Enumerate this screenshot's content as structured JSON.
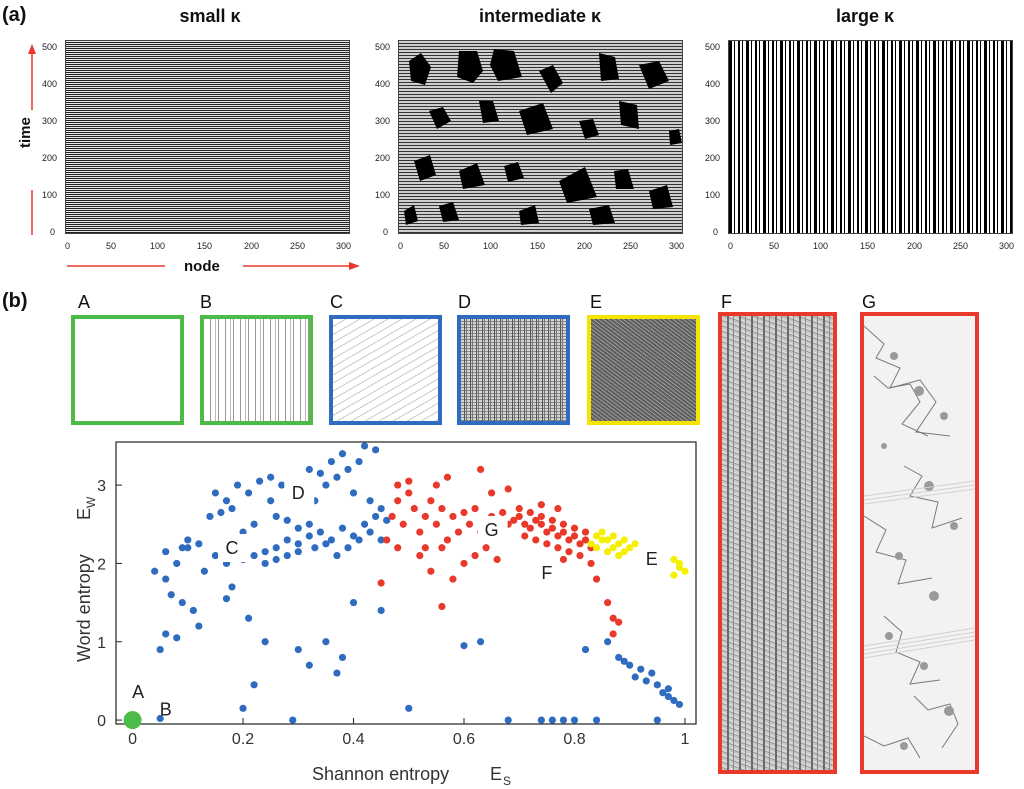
{
  "panel_a": {
    "label": "(a)",
    "titles": [
      "small κ",
      "intermediate κ",
      "large κ"
    ],
    "y_axis_label": "time",
    "x_axis_label": "node",
    "y_ticks": [
      "0",
      "100",
      "200",
      "300",
      "400",
      "500"
    ],
    "x_ticks": [
      "0",
      "50",
      "100",
      "150",
      "200",
      "250",
      "300"
    ]
  },
  "panel_b": {
    "label": "(b)",
    "thumbnails": [
      {
        "label": "A",
        "border": "#4cbb47"
      },
      {
        "label": "B",
        "border": "#4cbb47"
      },
      {
        "label": "C",
        "border": "#2f6cc0"
      },
      {
        "label": "D",
        "border": "#2f6cc0"
      },
      {
        "label": "E",
        "border": "#f5e400"
      },
      {
        "label": "F",
        "border": "#e8392a"
      },
      {
        "label": "G",
        "border": "#e8392a"
      }
    ]
  },
  "chart_data": {
    "type": "scatter",
    "xlabel": "Shannon entropy",
    "xlabel_symbol": "E",
    "xlabel_sub": "S",
    "ylabel": "Word entropy",
    "ylabel_symbol": "E",
    "ylabel_sub": "W",
    "xlim": [
      -0.03,
      1.02
    ],
    "ylim": [
      -0.05,
      3.55
    ],
    "x_ticks": [
      "0",
      "0.2",
      "0.4",
      "0.6",
      "0.8",
      "1"
    ],
    "y_ticks": [
      "0",
      "1",
      "2",
      "3"
    ],
    "colors": {
      "A": "#4cbb47",
      "blue": "#2f6cc0",
      "red": "#e8392a",
      "yellow": "#f5f000"
    },
    "series": [
      {
        "name": "blue",
        "points": [
          [
            0.05,
            0.9
          ],
          [
            0.06,
            1.1
          ],
          [
            0.08,
            1.05
          ],
          [
            0.12,
            1.2
          ],
          [
            0.07,
            1.6
          ],
          [
            0.09,
            1.5
          ],
          [
            0.11,
            1.4
          ],
          [
            0.04,
            1.9
          ],
          [
            0.06,
            1.8
          ],
          [
            0.08,
            2.0
          ],
          [
            0.1,
            2.3
          ],
          [
            0.09,
            2.2
          ],
          [
            0.13,
            1.9
          ],
          [
            0.15,
            2.1
          ],
          [
            0.17,
            2.0
          ],
          [
            0.18,
            1.7
          ],
          [
            0.2,
            2.05
          ],
          [
            0.22,
            2.1
          ],
          [
            0.24,
            2.15
          ],
          [
            0.26,
            2.2
          ],
          [
            0.28,
            2.3
          ],
          [
            0.3,
            2.25
          ],
          [
            0.32,
            2.35
          ],
          [
            0.34,
            2.4
          ],
          [
            0.36,
            2.3
          ],
          [
            0.38,
            2.45
          ],
          [
            0.4,
            2.35
          ],
          [
            0.42,
            2.5
          ],
          [
            0.24,
            2.0
          ],
          [
            0.26,
            2.05
          ],
          [
            0.28,
            2.1
          ],
          [
            0.3,
            2.15
          ],
          [
            0.33,
            2.2
          ],
          [
            0.35,
            2.25
          ],
          [
            0.37,
            2.1
          ],
          [
            0.39,
            2.2
          ],
          [
            0.41,
            2.3
          ],
          [
            0.43,
            2.4
          ],
          [
            0.45,
            2.3
          ],
          [
            0.2,
            2.4
          ],
          [
            0.22,
            2.5
          ],
          [
            0.14,
            2.6
          ],
          [
            0.16,
            2.65
          ],
          [
            0.18,
            2.7
          ],
          [
            0.15,
            2.9
          ],
          [
            0.17,
            2.8
          ],
          [
            0.19,
            3.0
          ],
          [
            0.21,
            2.9
          ],
          [
            0.23,
            3.05
          ],
          [
            0.25,
            3.1
          ],
          [
            0.27,
            3.0
          ],
          [
            0.25,
            2.8
          ],
          [
            0.29,
            2.85
          ],
          [
            0.31,
            2.9
          ],
          [
            0.33,
            2.8
          ],
          [
            0.35,
            3.0
          ],
          [
            0.37,
            3.1
          ],
          [
            0.39,
            3.2
          ],
          [
            0.41,
            3.3
          ],
          [
            0.42,
            3.5
          ],
          [
            0.44,
            3.45
          ],
          [
            0.38,
            3.4
          ],
          [
            0.36,
            3.3
          ],
          [
            0.34,
            3.15
          ],
          [
            0.32,
            3.2
          ],
          [
            0.4,
            2.9
          ],
          [
            0.43,
            2.8
          ],
          [
            0.45,
            2.7
          ],
          [
            0.46,
            2.55
          ],
          [
            0.44,
            2.6
          ],
          [
            0.26,
            2.6
          ],
          [
            0.28,
            2.55
          ],
          [
            0.3,
            2.45
          ],
          [
            0.32,
            2.5
          ],
          [
            0.12,
            2.25
          ],
          [
            0.1,
            2.2
          ],
          [
            0.06,
            2.15
          ],
          [
            0.17,
            1.55
          ],
          [
            0.21,
            1.3
          ],
          [
            0.24,
            1.0
          ],
          [
            0.3,
            0.9
          ],
          [
            0.32,
            0.7
          ],
          [
            0.35,
            1.0
          ],
          [
            0.38,
            0.8
          ],
          [
            0.22,
            0.45
          ],
          [
            0.2,
            0.15
          ],
          [
            0.29,
            0.0
          ],
          [
            0.5,
            0.15
          ],
          [
            0.37,
            0.6
          ],
          [
            0.4,
            1.5
          ],
          [
            0.45,
            1.4
          ],
          [
            0.68,
            0.0
          ],
          [
            0.74,
            0.0
          ],
          [
            0.76,
            0.0
          ],
          [
            0.78,
            0.0
          ],
          [
            0.8,
            0.0
          ],
          [
            0.84,
            0.0
          ],
          [
            0.95,
            0.0
          ],
          [
            0.82,
            0.9
          ],
          [
            0.86,
            1.0
          ],
          [
            0.88,
            0.8
          ],
          [
            0.9,
            0.7
          ],
          [
            0.92,
            0.65
          ],
          [
            0.94,
            0.6
          ],
          [
            0.95,
            0.45
          ],
          [
            0.96,
            0.35
          ],
          [
            0.97,
            0.3
          ],
          [
            0.98,
            0.25
          ],
          [
            0.99,
            0.2
          ],
          [
            0.97,
            0.4
          ],
          [
            0.93,
            0.5
          ],
          [
            0.91,
            0.55
          ],
          [
            0.89,
            0.75
          ],
          [
            0.6,
            0.95
          ],
          [
            0.63,
            1.0
          ],
          [
            0.05,
            0.02
          ]
        ]
      },
      {
        "name": "red",
        "points": [
          [
            0.47,
            2.6
          ],
          [
            0.48,
            2.8
          ],
          [
            0.49,
            2.5
          ],
          [
            0.5,
            2.9
          ],
          [
            0.51,
            2.7
          ],
          [
            0.52,
            2.4
          ],
          [
            0.53,
            2.6
          ],
          [
            0.54,
            2.8
          ],
          [
            0.55,
            2.5
          ],
          [
            0.56,
            2.7
          ],
          [
            0.57,
            2.3
          ],
          [
            0.58,
            2.6
          ],
          [
            0.59,
            2.4
          ],
          [
            0.6,
            2.65
          ],
          [
            0.61,
            2.5
          ],
          [
            0.62,
            2.7
          ],
          [
            0.63,
            2.4
          ],
          [
            0.64,
            2.55
          ],
          [
            0.65,
            2.6
          ],
          [
            0.66,
            2.45
          ],
          [
            0.67,
            2.65
          ],
          [
            0.68,
            2.5
          ],
          [
            0.69,
            2.55
          ],
          [
            0.7,
            2.6
          ],
          [
            0.71,
            2.5
          ],
          [
            0.72,
            2.45
          ],
          [
            0.73,
            2.55
          ],
          [
            0.74,
            2.5
          ],
          [
            0.75,
            2.4
          ],
          [
            0.76,
            2.45
          ],
          [
            0.77,
            2.35
          ],
          [
            0.78,
            2.4
          ],
          [
            0.79,
            2.3
          ],
          [
            0.8,
            2.35
          ],
          [
            0.81,
            2.25
          ],
          [
            0.82,
            2.3
          ],
          [
            0.83,
            2.2
          ],
          [
            0.7,
            2.7
          ],
          [
            0.72,
            2.65
          ],
          [
            0.74,
            2.6
          ],
          [
            0.76,
            2.55
          ],
          [
            0.78,
            2.5
          ],
          [
            0.8,
            2.45
          ],
          [
            0.82,
            2.4
          ],
          [
            0.71,
            2.35
          ],
          [
            0.73,
            2.3
          ],
          [
            0.75,
            2.25
          ],
          [
            0.77,
            2.2
          ],
          [
            0.79,
            2.15
          ],
          [
            0.81,
            2.1
          ],
          [
            0.74,
            2.75
          ],
          [
            0.77,
            2.7
          ],
          [
            0.65,
            2.9
          ],
          [
            0.68,
            2.95
          ],
          [
            0.55,
            3.0
          ],
          [
            0.57,
            3.1
          ],
          [
            0.48,
            3.0
          ],
          [
            0.5,
            3.05
          ],
          [
            0.46,
            2.3
          ],
          [
            0.48,
            2.2
          ],
          [
            0.52,
            2.1
          ],
          [
            0.56,
            2.2
          ],
          [
            0.6,
            2.0
          ],
          [
            0.62,
            2.1
          ],
          [
            0.64,
            2.2
          ],
          [
            0.66,
            2.05
          ],
          [
            0.54,
            1.9
          ],
          [
            0.58,
            1.8
          ],
          [
            0.63,
            3.2
          ],
          [
            0.53,
            2.2
          ],
          [
            0.84,
            1.8
          ],
          [
            0.86,
            1.5
          ],
          [
            0.87,
            1.3
          ],
          [
            0.88,
            1.25
          ],
          [
            0.87,
            1.1
          ],
          [
            0.56,
            1.45
          ],
          [
            0.45,
            1.75
          ],
          [
            0.83,
            2.0
          ],
          [
            0.78,
            2.05
          ]
        ]
      },
      {
        "name": "yellow",
        "points": [
          [
            0.84,
            2.35
          ],
          [
            0.85,
            2.4
          ],
          [
            0.86,
            2.3
          ],
          [
            0.87,
            2.35
          ],
          [
            0.88,
            2.25
          ],
          [
            0.89,
            2.3
          ],
          [
            0.9,
            2.2
          ],
          [
            0.84,
            2.2
          ],
          [
            0.86,
            2.15
          ],
          [
            0.88,
            2.1
          ],
          [
            0.85,
            2.3
          ],
          [
            0.87,
            2.2
          ],
          [
            0.89,
            2.15
          ],
          [
            0.91,
            2.25
          ],
          [
            0.83,
            2.25
          ],
          [
            0.98,
            2.05
          ],
          [
            0.99,
            1.95
          ],
          [
            0.98,
            1.85
          ],
          [
            0.99,
            2.0
          ],
          [
            1.0,
            1.9
          ]
        ]
      },
      {
        "name": "A",
        "points": [
          [
            0.0,
            0.0
          ]
        ]
      }
    ],
    "annotations": [
      {
        "text": "A",
        "x": 0.01,
        "y": 0.28
      },
      {
        "text": "B",
        "x": 0.06,
        "y": 0.06
      },
      {
        "text": "C",
        "x": 0.18,
        "y": 2.12
      },
      {
        "text": "D",
        "x": 0.3,
        "y": 2.82
      },
      {
        "text": "G",
        "x": 0.65,
        "y": 2.35
      },
      {
        "text": "F",
        "x": 0.75,
        "y": 1.8
      },
      {
        "text": "E",
        "x": 0.94,
        "y": 1.98
      }
    ]
  }
}
